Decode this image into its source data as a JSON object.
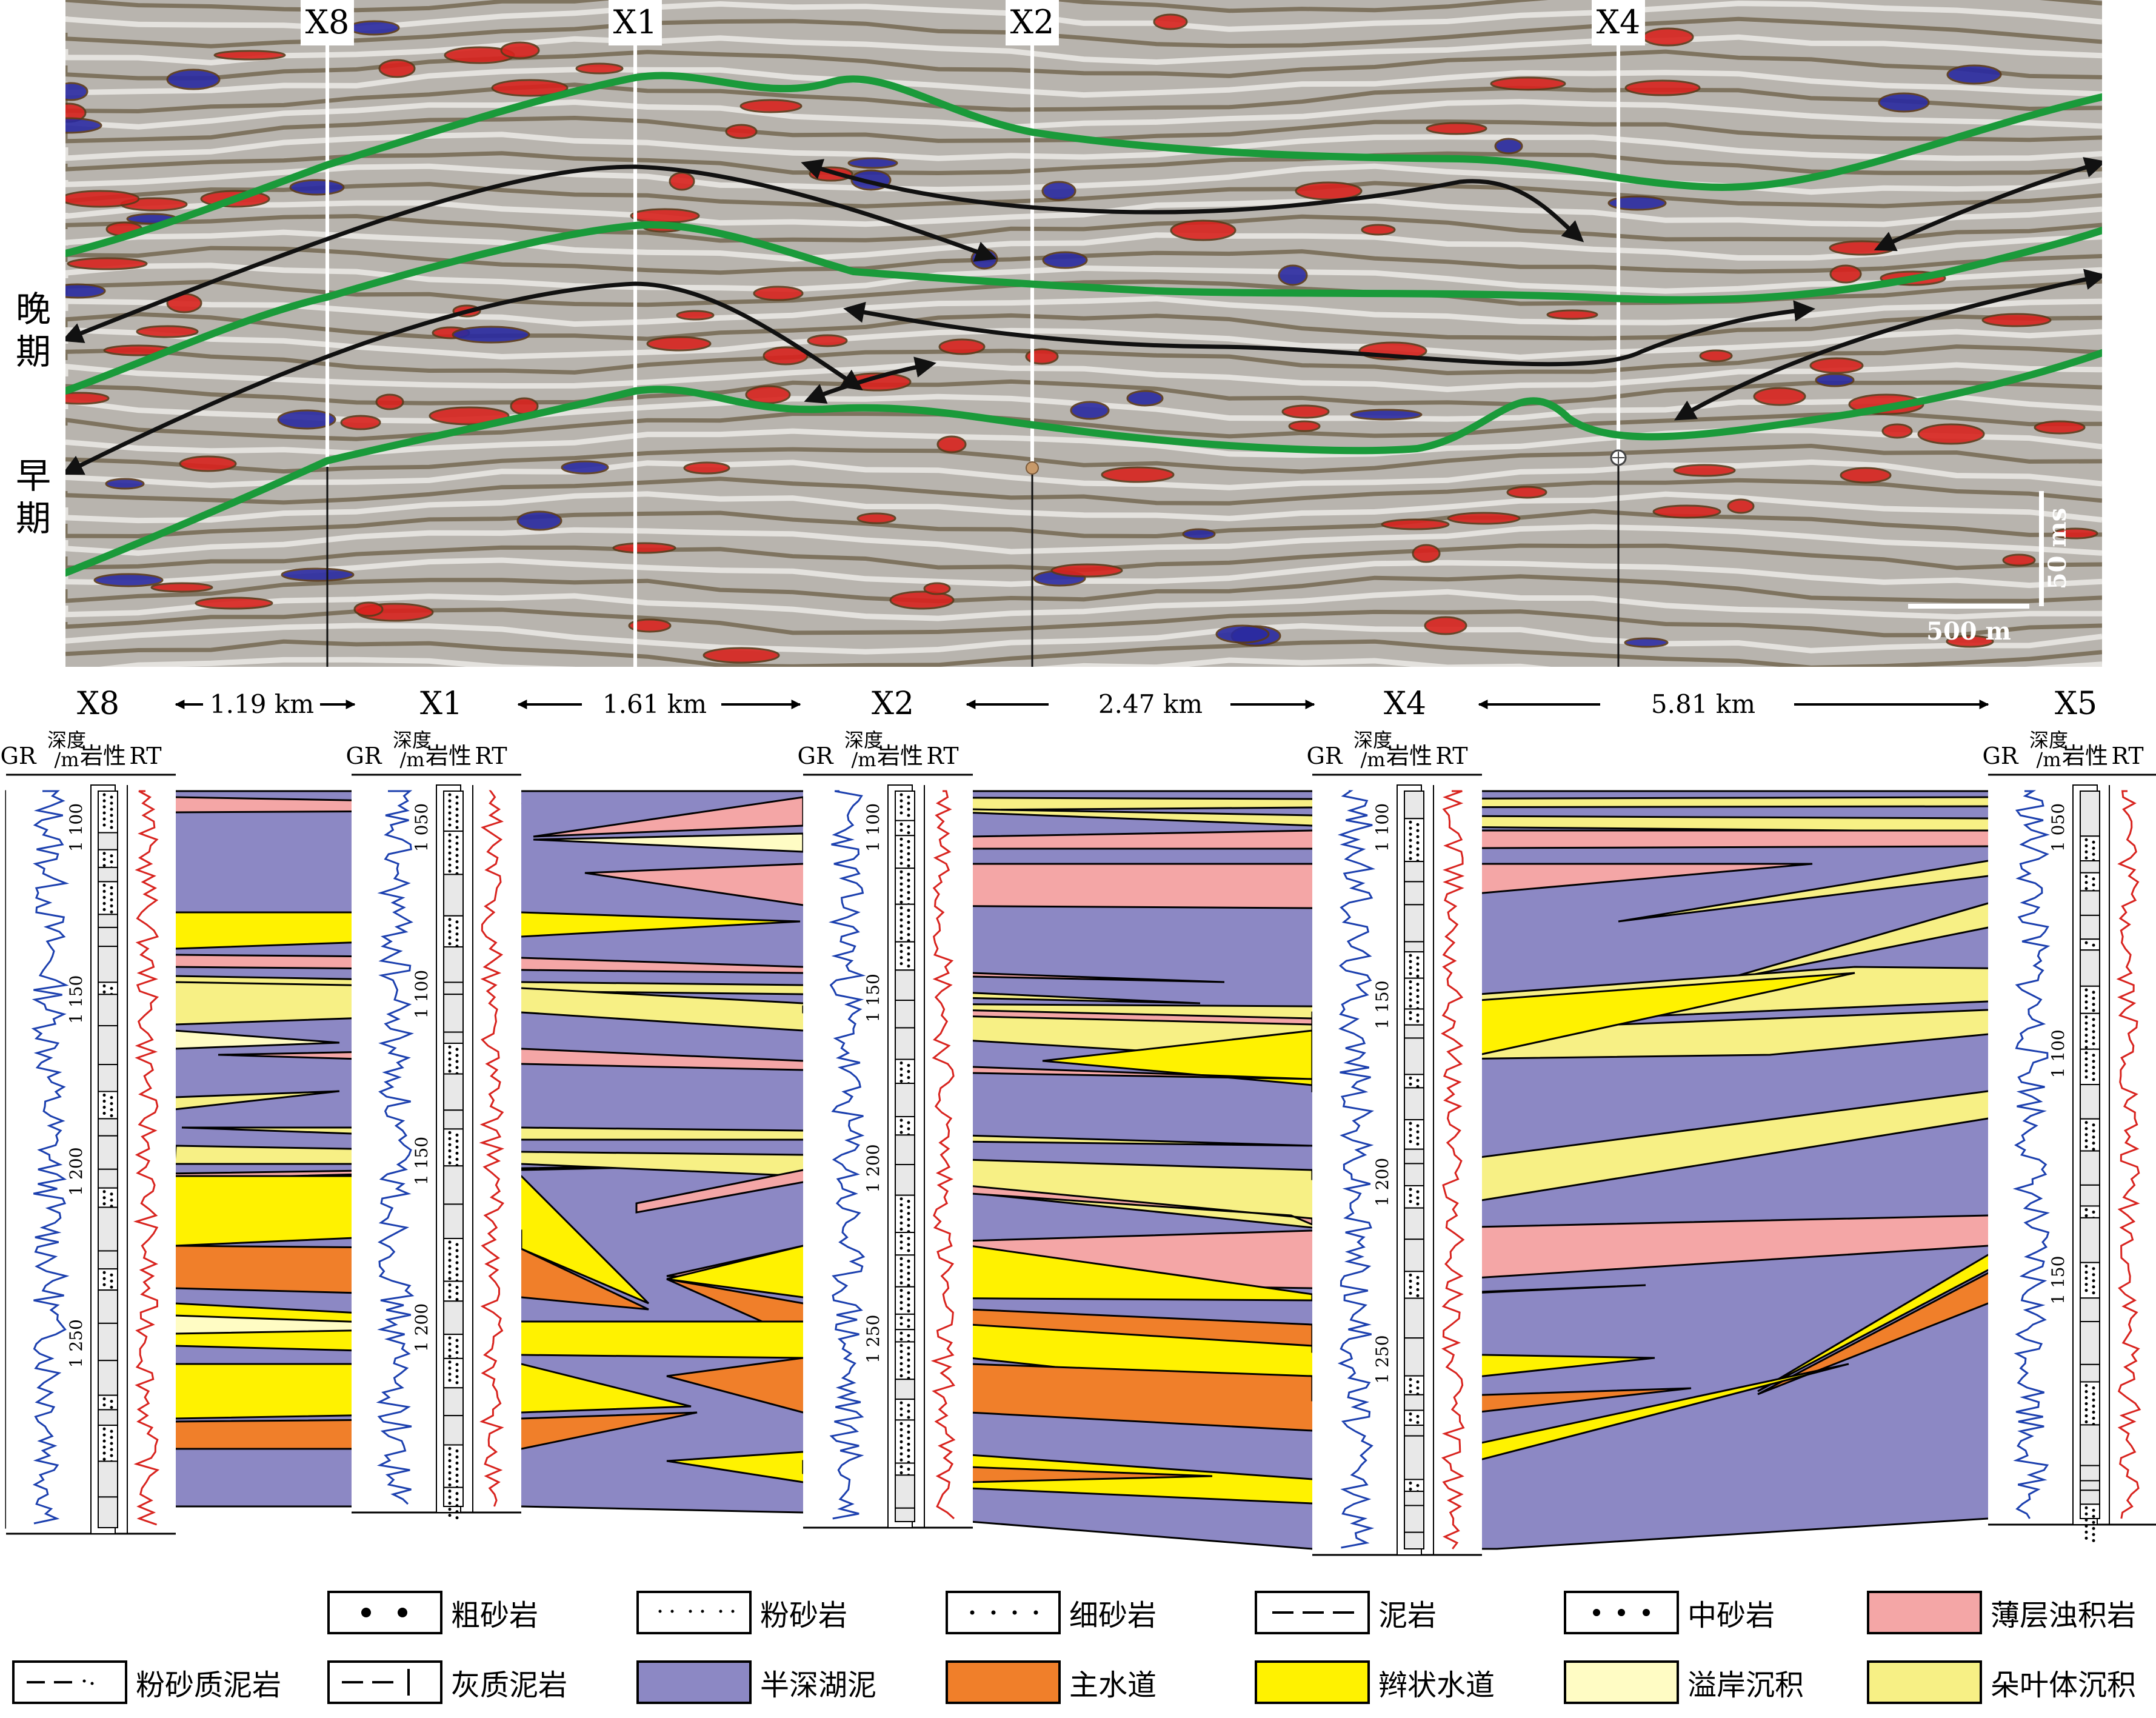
{
  "seismic": {
    "wells": [
      {
        "label": "X8"
      },
      {
        "label": "X1"
      },
      {
        "label": "X2"
      },
      {
        "label": "X4"
      }
    ],
    "stage_late": "晚期",
    "stage_early": "早期",
    "scale_vertical": "50 ms",
    "scale_horizontal": "500 m",
    "colors": {
      "horizon": "#1a9a3a",
      "arrow": "#111111",
      "peak": "#d8231e",
      "trough": "#2a2aa0"
    }
  },
  "section": {
    "wells": [
      {
        "name": "X8",
        "depth_labels": [
          "1 100",
          "1 150",
          "1 200",
          "1 250"
        ]
      },
      {
        "name": "X1",
        "depth_labels": [
          "1 050",
          "1 100",
          "1 150",
          "1 200"
        ]
      },
      {
        "name": "X2",
        "depth_labels": [
          "1 100",
          "1 150",
          "1 200",
          "1 250"
        ]
      },
      {
        "name": "X4",
        "depth_labels": [
          "1 100",
          "1 150",
          "1 200",
          "1 250"
        ]
      },
      {
        "name": "X5",
        "depth_labels": [
          "1 050",
          "1 100",
          "1 150"
        ]
      }
    ],
    "distances": [
      "1.19 km",
      "1.61 km",
      "2.47 km",
      "5.81 km"
    ],
    "header": {
      "gr": "GR",
      "depth_top": "深度",
      "depth_bottom": "/m",
      "litho": "岩性",
      "rt": "RT"
    },
    "colors": {
      "mud": "#8c88c4",
      "pink": "#f4a6a6",
      "yellow": "#fff200",
      "orange": "#f07f2a",
      "paleyellow": "#fffcc4",
      "lobe": "#f7f085"
    }
  },
  "legend": [
    {
      "label": "粗砂岩",
      "pattern": "coarse"
    },
    {
      "label": "粉砂岩",
      "pattern": "silt"
    },
    {
      "label": "细砂岩",
      "pattern": "fine"
    },
    {
      "label": "泥岩",
      "pattern": "mud"
    },
    {
      "label": "中砂岩",
      "pattern": "medium"
    },
    {
      "label": "薄层浊积岩",
      "pattern": "pink"
    },
    {
      "label": "粉砂质泥岩",
      "pattern": "siltymud"
    },
    {
      "label": "灰质泥岩",
      "pattern": "limemud"
    },
    {
      "label": "半深湖泥",
      "pattern": "lake"
    },
    {
      "label": "主水道",
      "pattern": "main"
    },
    {
      "label": "辫状水道",
      "pattern": "braided"
    },
    {
      "label": "溢岸沉积",
      "pattern": "overbank"
    },
    {
      "label": "朵叶体沉积",
      "pattern": "lobe"
    }
  ]
}
